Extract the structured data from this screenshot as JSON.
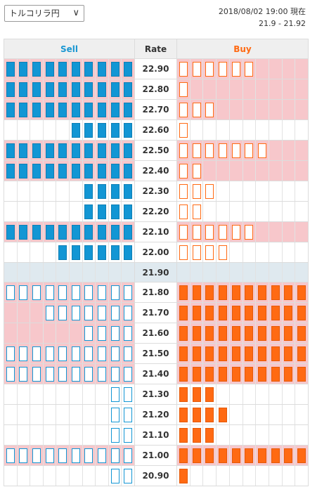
{
  "selector": {
    "label": "トルコリラ円",
    "icon": "chevron-down-icon"
  },
  "info": {
    "datetime": "2018/08/02 19:00 現在",
    "range": "21.9 - 21.92"
  },
  "columns": {
    "sell": "Sell",
    "rate": "Rate",
    "buy": "Buy"
  },
  "colors": {
    "sell": "#1296d4",
    "buy": "#ff6a13",
    "highlight": "#f7c7cb",
    "mid_row": "#dfe9ef"
  },
  "slots_per_side": 10,
  "rows": [
    {
      "rate": "22.90",
      "sell": 10,
      "sell_style": "filled",
      "buy": 6,
      "buy_style": "hollow",
      "highlight": true
    },
    {
      "rate": "22.80",
      "sell": 10,
      "sell_style": "filled",
      "buy": 1,
      "buy_style": "hollow",
      "highlight": true
    },
    {
      "rate": "22.70",
      "sell": 10,
      "sell_style": "filled",
      "buy": 3,
      "buy_style": "hollow",
      "highlight": true
    },
    {
      "rate": "22.60",
      "sell": 5,
      "sell_style": "filled",
      "buy": 1,
      "buy_style": "hollow",
      "highlight": false
    },
    {
      "rate": "22.50",
      "sell": 10,
      "sell_style": "filled",
      "buy": 7,
      "buy_style": "hollow",
      "highlight": true
    },
    {
      "rate": "22.40",
      "sell": 10,
      "sell_style": "filled",
      "buy": 2,
      "buy_style": "hollow",
      "highlight": true
    },
    {
      "rate": "22.30",
      "sell": 4,
      "sell_style": "filled",
      "buy": 3,
      "buy_style": "hollow",
      "highlight": false
    },
    {
      "rate": "22.20",
      "sell": 4,
      "sell_style": "filled",
      "buy": 2,
      "buy_style": "hollow",
      "highlight": false
    },
    {
      "rate": "22.10",
      "sell": 10,
      "sell_style": "filled",
      "buy": 6,
      "buy_style": "hollow",
      "highlight": true
    },
    {
      "rate": "22.00",
      "sell": 6,
      "sell_style": "filled",
      "buy": 4,
      "buy_style": "hollow",
      "highlight": false
    },
    {
      "rate": "21.90",
      "sell": 0,
      "sell_style": "none",
      "buy": 0,
      "buy_style": "none",
      "highlight": false,
      "mid": true
    },
    {
      "rate": "21.80",
      "sell": 10,
      "sell_style": "hollow",
      "buy": 10,
      "buy_style": "filled",
      "highlight": true
    },
    {
      "rate": "21.70",
      "sell": 7,
      "sell_style": "hollow",
      "buy": 10,
      "buy_style": "filled",
      "highlight": true
    },
    {
      "rate": "21.60",
      "sell": 4,
      "sell_style": "hollow",
      "buy": 10,
      "buy_style": "filled",
      "highlight": true
    },
    {
      "rate": "21.50",
      "sell": 10,
      "sell_style": "hollow",
      "buy": 10,
      "buy_style": "filled",
      "highlight": true
    },
    {
      "rate": "21.40",
      "sell": 10,
      "sell_style": "hollow",
      "buy": 10,
      "buy_style": "filled",
      "highlight": true
    },
    {
      "rate": "21.30",
      "sell": 2,
      "sell_style": "hollow",
      "buy": 3,
      "buy_style": "filled",
      "highlight": false
    },
    {
      "rate": "21.20",
      "sell": 2,
      "sell_style": "hollow",
      "buy": 4,
      "buy_style": "filled",
      "highlight": false
    },
    {
      "rate": "21.10",
      "sell": 2,
      "sell_style": "hollow",
      "buy": 3,
      "buy_style": "filled",
      "highlight": false
    },
    {
      "rate": "21.00",
      "sell": 10,
      "sell_style": "hollow",
      "buy": 10,
      "buy_style": "filled",
      "highlight": true
    },
    {
      "rate": "20.90",
      "sell": 2,
      "sell_style": "hollow",
      "buy": 1,
      "buy_style": "filled",
      "highlight": false
    }
  ]
}
